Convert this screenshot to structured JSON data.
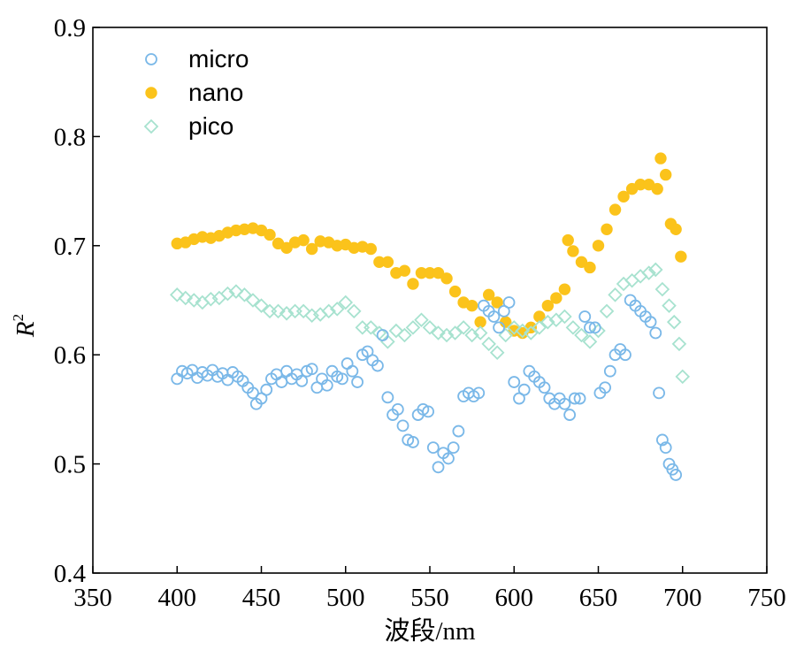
{
  "chart_data": {
    "type": "scatter",
    "xlabel": "波段/nm",
    "ylabel_main": "R",
    "ylabel_sup": "2",
    "xlim": [
      350,
      750
    ],
    "ylim": [
      0.4,
      0.9
    ],
    "xticks": [
      "350",
      "400",
      "450",
      "500",
      "550",
      "600",
      "650",
      "700",
      "750"
    ],
    "yticks": [
      "0.4",
      "0.5",
      "0.6",
      "0.7",
      "0.8",
      "0.9"
    ],
    "legend_position": "top-left",
    "grid": false,
    "series": [
      {
        "name": "micro",
        "marker": "open-circle",
        "color": "#7ab8e8",
        "x": [
          400,
          403,
          406,
          409,
          412,
          415,
          418,
          421,
          424,
          427,
          430,
          433,
          436,
          439,
          442,
          445,
          447,
          450,
          453,
          456,
          459,
          462,
          465,
          468,
          471,
          474,
          477,
          480,
          483,
          486,
          489,
          492,
          495,
          498,
          501,
          504,
          507,
          510,
          513,
          516,
          519,
          522,
          525,
          528,
          531,
          534,
          537,
          540,
          543,
          546,
          549,
          552,
          555,
          558,
          561,
          564,
          567,
          570,
          573,
          576,
          579,
          582,
          585,
          588,
          591,
          594,
          597,
          600,
          603,
          606,
          609,
          612,
          615,
          618,
          621,
          624,
          627,
          630,
          633,
          636,
          639,
          642,
          645,
          648,
          651,
          654,
          657,
          660,
          663,
          666,
          669,
          672,
          675,
          678,
          681,
          684,
          686,
          688,
          690,
          692,
          694,
          696
        ],
        "y": [
          0.578,
          0.585,
          0.583,
          0.586,
          0.579,
          0.584,
          0.581,
          0.586,
          0.58,
          0.583,
          0.577,
          0.584,
          0.58,
          0.576,
          0.57,
          0.565,
          0.555,
          0.56,
          0.568,
          0.578,
          0.582,
          0.575,
          0.585,
          0.578,
          0.582,
          0.576,
          0.585,
          0.587,
          0.57,
          0.578,
          0.572,
          0.585,
          0.58,
          0.578,
          0.592,
          0.585,
          0.575,
          0.6,
          0.603,
          0.595,
          0.59,
          0.618,
          0.561,
          0.545,
          0.55,
          0.535,
          0.522,
          0.52,
          0.545,
          0.55,
          0.548,
          0.515,
          0.497,
          0.51,
          0.505,
          0.515,
          0.53,
          0.562,
          0.565,
          0.562,
          0.565,
          0.645,
          0.64,
          0.635,
          0.625,
          0.64,
          0.648,
          0.575,
          0.56,
          0.568,
          0.585,
          0.58,
          0.575,
          0.57,
          0.56,
          0.555,
          0.56,
          0.555,
          0.545,
          0.56,
          0.56,
          0.635,
          0.625,
          0.625,
          0.565,
          0.57,
          0.585,
          0.6,
          0.605,
          0.6,
          0.65,
          0.645,
          0.64,
          0.635,
          0.63,
          0.62,
          0.565,
          0.522,
          0.515,
          0.5,
          0.495,
          0.49
        ]
      },
      {
        "name": "nano",
        "marker": "filled-circle",
        "color": "#fbc31b",
        "x": [
          400,
          405,
          410,
          415,
          420,
          425,
          430,
          435,
          440,
          445,
          450,
          455,
          460,
          465,
          470,
          475,
          480,
          485,
          490,
          495,
          500,
          505,
          510,
          515,
          520,
          525,
          530,
          535,
          540,
          545,
          550,
          555,
          560,
          565,
          570,
          575,
          580,
          585,
          590,
          595,
          600,
          605,
          610,
          615,
          620,
          625,
          630,
          632,
          635,
          640,
          645,
          650,
          655,
          660,
          665,
          670,
          675,
          680,
          685,
          687,
          690,
          693,
          696,
          699
        ],
        "y": [
          0.702,
          0.703,
          0.706,
          0.708,
          0.707,
          0.709,
          0.712,
          0.714,
          0.715,
          0.716,
          0.714,
          0.71,
          0.702,
          0.698,
          0.703,
          0.705,
          0.697,
          0.704,
          0.703,
          0.7,
          0.701,
          0.698,
          0.699,
          0.697,
          0.685,
          0.685,
          0.675,
          0.677,
          0.665,
          0.675,
          0.675,
          0.675,
          0.67,
          0.658,
          0.648,
          0.645,
          0.63,
          0.655,
          0.648,
          0.63,
          0.622,
          0.62,
          0.625,
          0.635,
          0.645,
          0.652,
          0.66,
          0.705,
          0.695,
          0.685,
          0.68,
          0.7,
          0.715,
          0.733,
          0.745,
          0.752,
          0.756,
          0.756,
          0.752,
          0.78,
          0.765,
          0.72,
          0.715,
          0.69
        ]
      },
      {
        "name": "pico",
        "marker": "open-diamond",
        "color": "#a7e2cf",
        "x": [
          400,
          405,
          410,
          415,
          420,
          425,
          430,
          435,
          440,
          445,
          450,
          455,
          460,
          465,
          470,
          475,
          480,
          485,
          490,
          495,
          500,
          505,
          510,
          515,
          520,
          525,
          530,
          535,
          540,
          545,
          550,
          555,
          560,
          565,
          570,
          575,
          580,
          585,
          590,
          595,
          600,
          605,
          610,
          615,
          620,
          625,
          630,
          635,
          640,
          645,
          650,
          655,
          660,
          665,
          670,
          675,
          680,
          684,
          688,
          692,
          695,
          698,
          700
        ],
        "y": [
          0.655,
          0.652,
          0.65,
          0.648,
          0.651,
          0.652,
          0.656,
          0.658,
          0.655,
          0.65,
          0.645,
          0.64,
          0.64,
          0.638,
          0.64,
          0.64,
          0.636,
          0.637,
          0.64,
          0.642,
          0.648,
          0.64,
          0.625,
          0.625,
          0.62,
          0.612,
          0.622,
          0.618,
          0.625,
          0.632,
          0.625,
          0.62,
          0.618,
          0.62,
          0.625,
          0.618,
          0.62,
          0.61,
          0.602,
          0.618,
          0.625,
          0.622,
          0.62,
          0.625,
          0.63,
          0.632,
          0.635,
          0.625,
          0.618,
          0.612,
          0.622,
          0.64,
          0.655,
          0.665,
          0.668,
          0.672,
          0.675,
          0.678,
          0.66,
          0.645,
          0.63,
          0.61,
          0.58
        ]
      }
    ]
  }
}
